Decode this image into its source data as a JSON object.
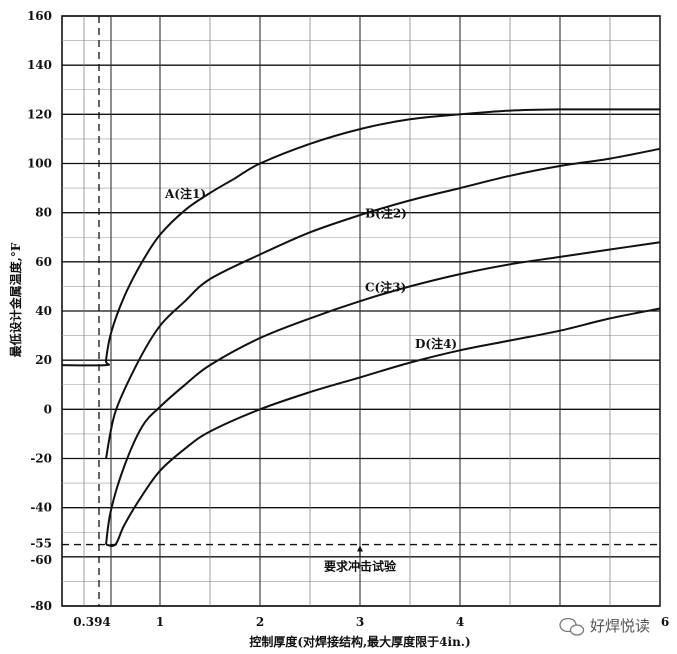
{
  "chart_data": {
    "type": "line",
    "title": "",
    "xlabel": "控制厚度(对焊接结构,最大厚度限于4in.)",
    "ylabel": "最低设计金属温度,°F",
    "xlim": [
      0,
      6
    ],
    "ylim": [
      -80,
      160
    ],
    "x_ticks": [
      {
        "value": 0.394,
        "label": "0.394"
      },
      {
        "value": 1,
        "label": "1"
      },
      {
        "value": 2,
        "label": "2"
      },
      {
        "value": 3,
        "label": "3"
      },
      {
        "value": 4,
        "label": "4"
      },
      {
        "value": 6,
        "label": "6"
      }
    ],
    "y_ticks": [
      {
        "value": 160,
        "label": "160"
      },
      {
        "value": 140,
        "label": "140"
      },
      {
        "value": 120,
        "label": "120"
      },
      {
        "value": 100,
        "label": "100"
      },
      {
        "value": 80,
        "label": "80"
      },
      {
        "value": 60,
        "label": "60"
      },
      {
        "value": 40,
        "label": "40"
      },
      {
        "value": 20,
        "label": "20"
      },
      {
        "value": 0,
        "label": "0"
      },
      {
        "value": -20,
        "label": "-20"
      },
      {
        "value": -40,
        "label": "-40"
      },
      {
        "value": -55,
        "label": "-55"
      },
      {
        "value": -60,
        "label": "-60"
      },
      {
        "value": -80,
        "label": "-80"
      }
    ],
    "grid": true,
    "series": [
      {
        "name": "A(注1)",
        "label_at": [
          1.05,
          86
        ],
        "x": [
          0,
          0.394,
          0.394,
          0.45,
          0.6,
          0.8,
          1.0,
          1.25,
          1.5,
          1.75,
          2.0,
          2.5,
          3.0,
          3.5,
          4.0,
          4.5,
          5.0,
          5.5,
          6.0
        ],
        "y": [
          18,
          18,
          20,
          31,
          46,
          60,
          71,
          81,
          88,
          94,
          100,
          108,
          114,
          118,
          120,
          121.5,
          122,
          122,
          122
        ]
      },
      {
        "name": "B(注2)",
        "label_at": [
          3.05,
          78
        ],
        "x": [
          0.394,
          0.5,
          0.75,
          1.0,
          1.25,
          1.5,
          2.0,
          2.5,
          3.0,
          3.5,
          4.0,
          4.5,
          5.0,
          5.5,
          6.0
        ],
        "y": [
          -20,
          -1,
          19,
          34,
          44,
          53,
          63,
          72,
          79,
          85,
          90,
          95,
          99,
          102,
          106
        ]
      },
      {
        "name": "C(注3)",
        "label_at": [
          3.05,
          48
        ],
        "x": [
          0.394,
          0.45,
          0.6,
          0.8,
          1.0,
          1.25,
          1.5,
          2.0,
          2.5,
          3.0,
          3.5,
          4.0,
          4.5,
          5.0,
          5.5,
          6.0
        ],
        "y": [
          -55,
          -41,
          -23,
          -7,
          1,
          10,
          18,
          29,
          37,
          44,
          50,
          55,
          59,
          62,
          65,
          68
        ]
      },
      {
        "name": "D(注4)",
        "label_at": [
          3.55,
          25
        ],
        "x": [
          0.394,
          0.5,
          0.6,
          0.8,
          1.0,
          1.25,
          1.5,
          2.0,
          2.5,
          3.0,
          3.5,
          4.0,
          4.5,
          5.0,
          5.5,
          6.0
        ],
        "y": [
          -55,
          -55,
          -47,
          -35,
          -25,
          -16,
          -9,
          0,
          7,
          13,
          19,
          24,
          28,
          32,
          37,
          41
        ]
      }
    ],
    "reference_lines": [
      {
        "orientation": "horizontal",
        "value": -55,
        "style": "dashed"
      },
      {
        "orientation": "vertical",
        "value": 0.394,
        "style": "dashed"
      }
    ],
    "annotations": [
      {
        "text": "要求冲击试验",
        "x": 3.0,
        "y": -64,
        "arrow_to": [
          3.0,
          -55
        ]
      }
    ]
  },
  "watermark": {
    "text": "好焊悦读",
    "icon": "wechat-icon"
  }
}
